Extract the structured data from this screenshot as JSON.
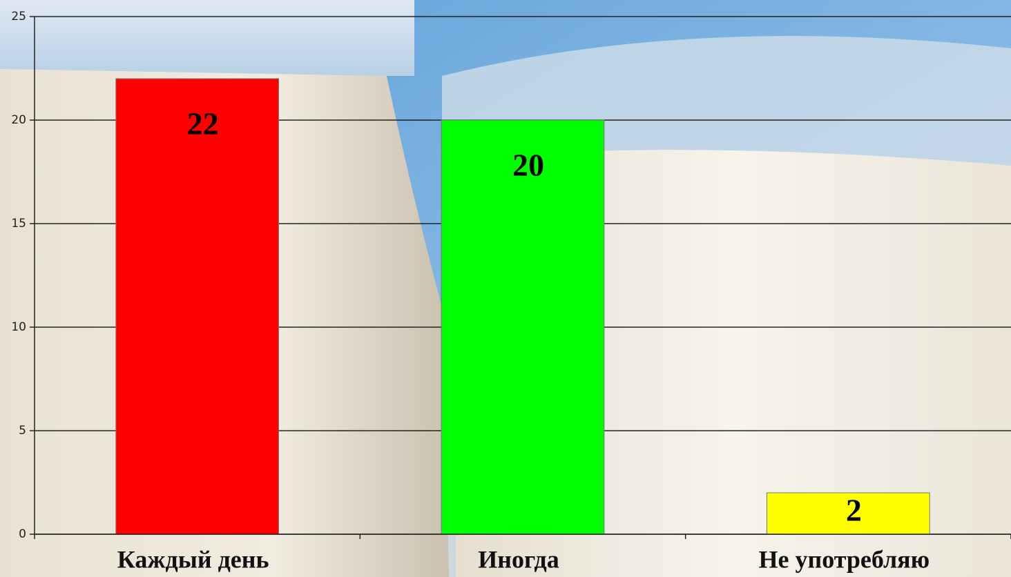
{
  "chart_data": {
    "type": "bar",
    "categories": [
      "Каждый день",
      "Иногда",
      "Не употребляю"
    ],
    "values": [
      22,
      20,
      2
    ],
    "colors": [
      "#ff0000",
      "#00ff00",
      "#ffff00"
    ],
    "ylim": [
      0,
      25
    ],
    "yticks": [
      0,
      5,
      10,
      15,
      20,
      25
    ],
    "grid": true
  }
}
